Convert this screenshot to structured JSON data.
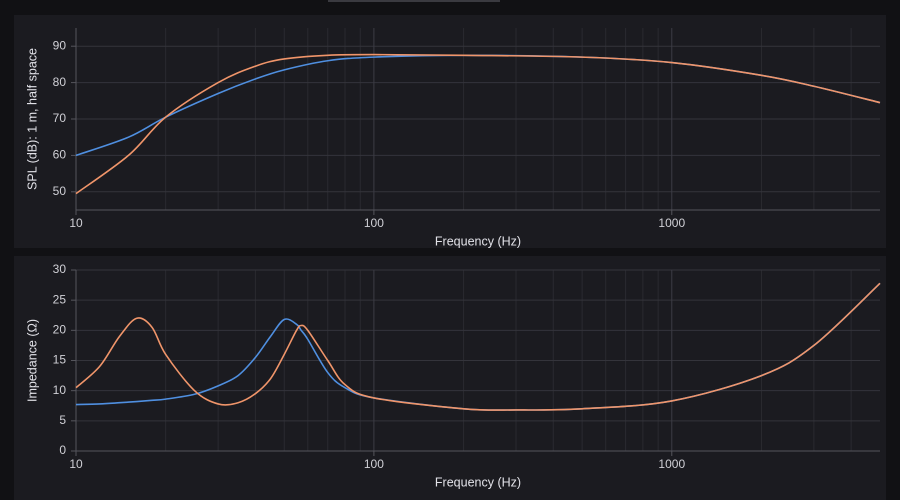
{
  "chart_data": [
    {
      "type": "line",
      "y_label": "SPL (dB): 1 m, half space",
      "x_label": "Frequency (Hz)",
      "log_x": true,
      "grid": true,
      "x": [
        10,
        15,
        20,
        30,
        40,
        50,
        70,
        100,
        200,
        500,
        1000,
        2000,
        3000,
        5000
      ],
      "series": [
        {
          "color": "#4f8fe0",
          "values": [
            60,
            65,
            70.5,
            77,
            81,
            83.5,
            86,
            87,
            87.5,
            87,
            85.5,
            82,
            79,
            74.5
          ]
        },
        {
          "color": "#f0956a",
          "values": [
            49.5,
            60,
            70.5,
            80,
            84.5,
            86.5,
            87.5,
            87.7,
            87.5,
            87,
            85.5,
            82,
            79,
            74.5
          ]
        }
      ],
      "xlim": [
        10,
        5000
      ],
      "xticks": [
        10,
        100,
        1000
      ],
      "ylim": [
        45,
        95
      ],
      "yticks": [
        50,
        60,
        70,
        80,
        90
      ]
    },
    {
      "type": "line",
      "y_label": "Impedance (Ω)",
      "x_label": "Frequency (Hz)",
      "log_x": true,
      "grid": true,
      "x": [
        10,
        12,
        14,
        16,
        18,
        20,
        25,
        30,
        35,
        40,
        45,
        50,
        55,
        57,
        60,
        70,
        80,
        100,
        200,
        300,
        500,
        1000,
        2000,
        3000,
        5000
      ],
      "series": [
        {
          "color": "#4f8fe0",
          "values": [
            7.7,
            7.8,
            8,
            8.2,
            8.4,
            8.6,
            9.4,
            10.8,
            12.5,
            15.5,
            19,
            21.8,
            21,
            20,
            18.5,
            13,
            10.5,
            8.8,
            7,
            6.8,
            7,
            8.3,
            12.5,
            17.5,
            27.8
          ]
        },
        {
          "color": "#f0956a",
          "values": [
            10.5,
            14,
            19,
            22,
            20.5,
            16,
            10,
            7.8,
            8,
            9.5,
            12,
            16,
            20,
            20.8,
            20,
            15,
            11,
            8.8,
            7,
            6.8,
            7,
            8.3,
            12.5,
            17.5,
            27.8
          ]
        }
      ],
      "xlim": [
        10,
        5000
      ],
      "xticks": [
        10,
        100,
        1000
      ],
      "ylim": [
        0,
        30
      ],
      "yticks": [
        0,
        5,
        10,
        15,
        20,
        25,
        30
      ]
    }
  ]
}
